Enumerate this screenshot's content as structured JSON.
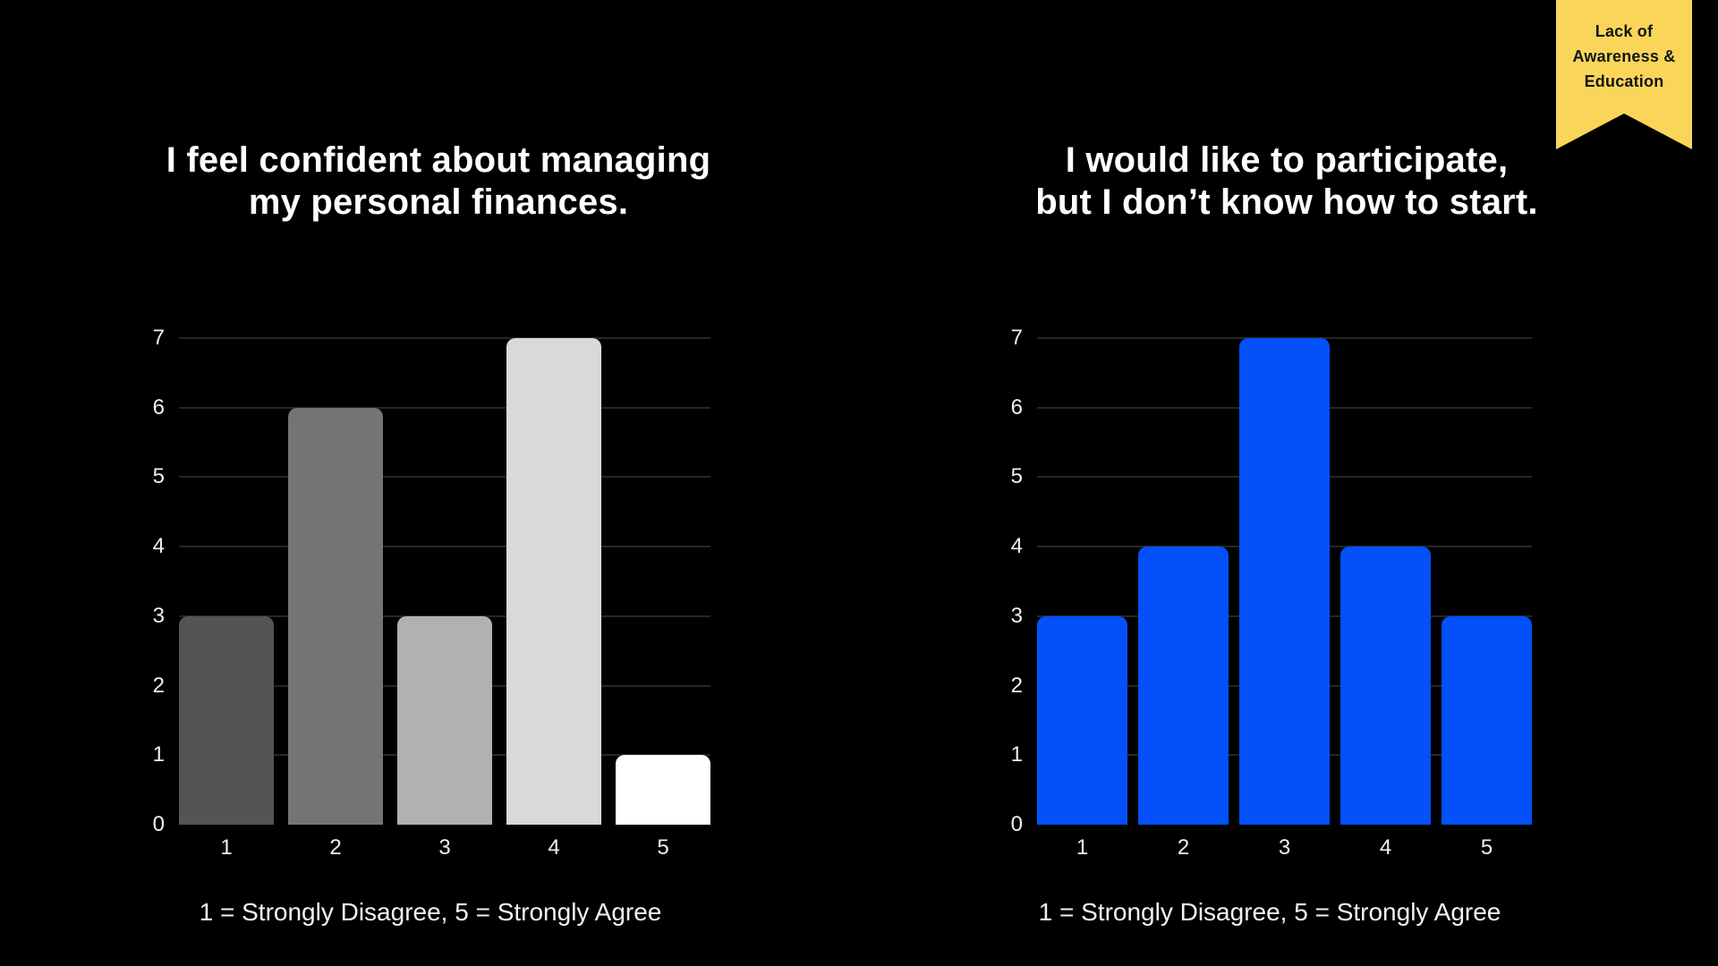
{
  "colors": {
    "background": "#000000",
    "gridline": "#262626",
    "axis_text": "#F0F0F0",
    "title_text": "#FFFFFF",
    "accent_blue": "#0450FA",
    "ribbon_yellow": "#F9D65A",
    "ribbon_text": "#141414"
  },
  "ribbon": {
    "lines": [
      "Lack of",
      "Awareness &",
      "Education"
    ]
  },
  "chart_data": [
    {
      "type": "bar",
      "title": "I feel confident about managing my personal finances.",
      "title_lines": [
        "I feel confident about managing",
        "my personal finances."
      ],
      "categories": [
        "1",
        "2",
        "3",
        "4",
        "5"
      ],
      "values": [
        3,
        6,
        3,
        7,
        1
      ],
      "bar_colors": [
        "#545454",
        "#747474",
        "#B1B1B1",
        "#D9D9D9",
        "#FFFFFF"
      ],
      "caption": "1 = Strongly Disagree, 5 = Strongly Agree",
      "xlabel": "",
      "ylabel": "",
      "ylim": [
        0,
        7
      ],
      "yticks": [
        0,
        1,
        2,
        3,
        4,
        5,
        6,
        7
      ],
      "grid": true,
      "legend": false
    },
    {
      "type": "bar",
      "title": "I would like to participate, but I don’t know how to start.",
      "title_lines": [
        "I would like to participate,",
        "but I don’t know how to start."
      ],
      "categories": [
        "1",
        "2",
        "3",
        "4",
        "5"
      ],
      "values": [
        3,
        4,
        7,
        4,
        3
      ],
      "bar_colors": [
        "#0450FA",
        "#0450FA",
        "#0450FA",
        "#0450FA",
        "#0450FA"
      ],
      "caption": "1 = Strongly Disagree, 5 = Strongly Agree",
      "xlabel": "",
      "ylabel": "",
      "ylim": [
        0,
        7
      ],
      "yticks": [
        0,
        1,
        2,
        3,
        4,
        5,
        6,
        7
      ],
      "grid": true,
      "legend": false
    }
  ]
}
